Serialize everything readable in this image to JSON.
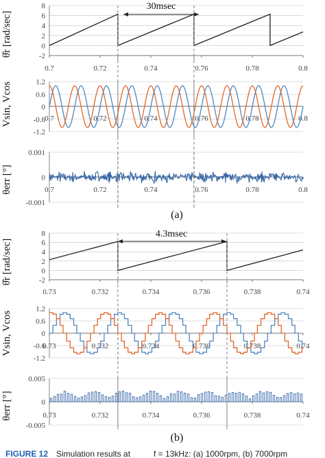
{
  "colors": {
    "sin": "#4f86c0",
    "cos": "#e0662a",
    "theta": "#222222",
    "err": "#3566a8",
    "grid": "#bfbfbf",
    "marker": "#808080",
    "caption_label": "#1a5fb4"
  },
  "panel_labels": {
    "a": "(a)",
    "b": "(b)"
  },
  "caption": {
    "label": "FIGURE 12",
    "text": "Simulation results at",
    "formula": "f = 13kHz: (a) 1000rpm, (b) 7000rpm"
  },
  "annotations": {
    "a": "30msec",
    "b": "4.3msec"
  },
  "chart_data": [
    {
      "type": "line",
      "id": "a1",
      "title": "",
      "xlabel": "",
      "ylabel": "θ̂r [rad/sec]",
      "xlim": [
        0.7,
        0.8
      ],
      "ylim": [
        -2,
        8
      ],
      "xticks": [
        "0.7",
        "0.72",
        "0.74",
        "0.76",
        "0.78",
        "0.8"
      ],
      "yticks": [
        "-2",
        "0",
        "2",
        "4",
        "6",
        "8"
      ],
      "series": [
        {
          "kind": "sawtooth",
          "x": [
            0.7,
            0.727,
            0.727,
            0.757,
            0.757,
            0.787,
            0.787,
            0.8
          ],
          "y": [
            0,
            6.28,
            0,
            6.28,
            0,
            6.28,
            0,
            2.72
          ]
        }
      ],
      "vlines": [
        0.727,
        0.757
      ]
    },
    {
      "type": "line",
      "id": "a2",
      "title": "",
      "xlabel": "",
      "ylabel": "Vsin, Vcos",
      "xlim": [
        0.7,
        0.8
      ],
      "ylim": [
        -1.2,
        1.2
      ],
      "xticks": [
        "0.7",
        "0.72",
        "0.74",
        "0.76",
        "0.78",
        "0.8"
      ],
      "yticks": [
        "-1.2",
        "-0.6",
        "0",
        "0.6",
        "1.2"
      ],
      "series": [
        {
          "kind": "sine",
          "phase": "sin",
          "amplitude": 1,
          "period": 0.01,
          "x_start": 0.7,
          "x_end": 0.8
        },
        {
          "kind": "sine",
          "phase": "cos",
          "amplitude": 1,
          "period": 0.01,
          "x_start": 0.7,
          "x_end": 0.8
        }
      ],
      "vlines": [
        0.727,
        0.757
      ]
    },
    {
      "type": "line",
      "id": "a3",
      "title": "",
      "xlabel": "",
      "ylabel": "θerr [°]",
      "xlim": [
        0.7,
        0.8
      ],
      "ylim": [
        -0.001,
        0.001
      ],
      "xticks": [
        "0.7",
        "0.72",
        "0.74",
        "0.76",
        "0.78",
        "0.8"
      ],
      "yticks": [
        "-0.001",
        "0",
        "0.001"
      ],
      "series": [
        {
          "kind": "noise",
          "amplitude": 0.00028
        }
      ],
      "vlines": [
        0.727,
        0.757
      ]
    },
    {
      "type": "line",
      "id": "b1",
      "title": "",
      "xlabel": "",
      "ylabel": "θ̂r [rad/sec]",
      "xlim": [
        0.73,
        0.74
      ],
      "ylim": [
        -2,
        8
      ],
      "xticks": [
        "0.73",
        "0.732",
        "0.734",
        "0.736",
        "0.738",
        "0.74"
      ],
      "yticks": [
        "-2",
        "0",
        "2",
        "4",
        "6",
        "8"
      ],
      "series": [
        {
          "kind": "sawtooth",
          "x": [
            0.73,
            0.7327,
            0.7327,
            0.737,
            0.737,
            0.74
          ],
          "y": [
            2.3,
            6.2,
            0,
            6.2,
            0,
            4.4
          ]
        }
      ],
      "vlines": [
        0.7327,
        0.737
      ]
    },
    {
      "type": "line",
      "id": "b2",
      "title": "",
      "xlabel": "",
      "ylabel": "Vsin, Vcos",
      "xlim": [
        0.73,
        0.74
      ],
      "ylim": [
        -1.2,
        1.2
      ],
      "xticks": [
        "0.73",
        "0.732",
        "0.734",
        "0.736",
        "0.738",
        "0.74"
      ],
      "yticks": [
        "-1.2",
        "-0.6",
        "0",
        "0.6",
        "1.2"
      ],
      "series": [
        {
          "kind": "stair-sine",
          "phase": "sin",
          "amplitude": 1,
          "period": 0.00215,
          "x_start": 0.73,
          "x_end": 0.74
        },
        {
          "kind": "stair-sine",
          "phase": "cos",
          "amplitude": 1,
          "period": 0.00215,
          "x_start": 0.73,
          "x_end": 0.74
        }
      ],
      "vlines": [
        0.7327,
        0.737
      ]
    },
    {
      "type": "bar",
      "id": "b3",
      "title": "",
      "xlabel": "",
      "ylabel": "θerr [°]",
      "xlim": [
        0.73,
        0.74
      ],
      "ylim": [
        -0.005,
        0.005
      ],
      "xticks": [
        "0.73",
        "0.732",
        "0.734",
        "0.736",
        "0.738",
        "0.74"
      ],
      "yticks": [
        "-0.005",
        "0",
        "0.005"
      ],
      "series": [
        {
          "kind": "spikes",
          "amplitude": 0.0024,
          "count": 74
        }
      ],
      "vlines": [
        0.7327,
        0.737
      ]
    }
  ]
}
